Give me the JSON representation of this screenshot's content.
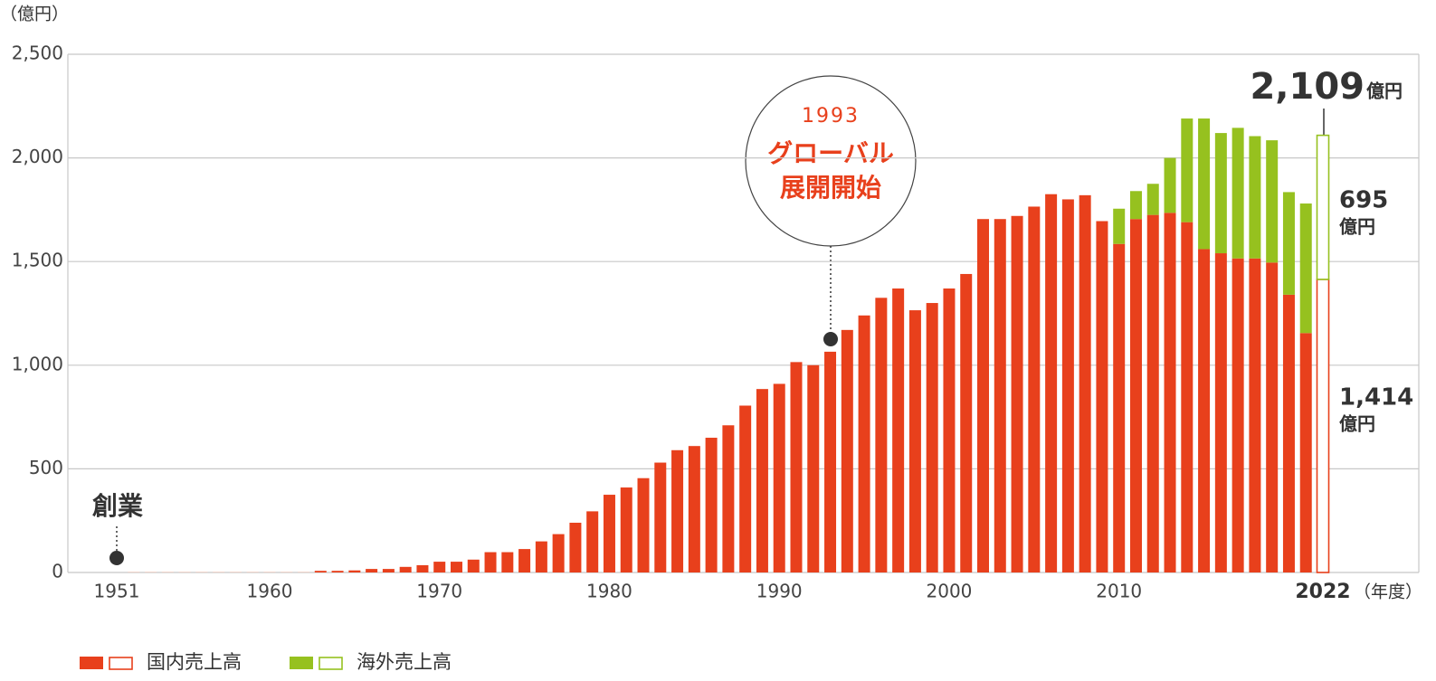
{
  "chart_data": {
    "type": "bar",
    "stacked": true,
    "y_unit": "（億円）",
    "x_unit": "（年度）",
    "categories": [
      "1951",
      null,
      null,
      null,
      null,
      null,
      null,
      null,
      null,
      "1960",
      null,
      null,
      null,
      null,
      null,
      null,
      null,
      null,
      null,
      "1970",
      null,
      null,
      null,
      null,
      null,
      null,
      null,
      null,
      null,
      "1980",
      null,
      null,
      null,
      null,
      null,
      null,
      null,
      null,
      null,
      "1990",
      null,
      null,
      null,
      null,
      null,
      null,
      null,
      null,
      null,
      "2000",
      null,
      null,
      null,
      null,
      null,
      null,
      null,
      null,
      null,
      "2010",
      null,
      null,
      null,
      null,
      null,
      null,
      null,
      null,
      null,
      null,
      null,
      "2022"
    ],
    "series": [
      {
        "name": "国内売上高",
        "color": "#e8401c",
        "values": [
          null,
          3,
          3,
          3,
          3,
          3,
          3,
          3,
          3,
          3,
          3,
          3,
          8,
          8,
          10,
          17,
          17,
          27,
          35,
          52,
          52,
          62,
          98,
          98,
          113,
          150,
          185,
          240,
          295,
          375,
          410,
          455,
          530,
          590,
          610,
          650,
          710,
          805,
          885,
          910,
          1015,
          1000,
          1065,
          1170,
          1240,
          1325,
          1370,
          1265,
          1300,
          1370,
          1440,
          1705,
          1705,
          1720,
          1765,
          1825,
          1800,
          1820,
          1695,
          1585,
          1705,
          1725,
          1735,
          1690,
          1560,
          1540,
          1515,
          1515,
          1495,
          1340,
          1155,
          1414
        ],
        "value_labels": [
          null,
          null,
          null,
          null,
          null,
          null,
          null,
          null,
          null,
          null,
          null,
          null,
          null,
          null,
          null,
          null,
          null,
          null,
          null,
          null,
          null,
          null,
          null,
          null,
          null,
          null,
          null,
          null,
          null,
          null,
          null,
          null,
          null,
          null,
          null,
          null,
          null,
          null,
          null,
          null,
          null,
          null,
          null,
          null,
          null,
          null,
          null,
          null,
          null,
          null,
          null,
          null,
          null,
          null,
          null,
          null,
          null,
          null,
          null,
          null,
          null,
          null,
          null,
          null,
          null,
          null,
          null,
          null,
          null,
          null,
          null,
          "1,414"
        ]
      },
      {
        "name": "海外売上高",
        "color": "#96c11f",
        "values": [
          null,
          null,
          null,
          null,
          null,
          null,
          null,
          null,
          null,
          null,
          null,
          null,
          null,
          null,
          null,
          null,
          null,
          null,
          null,
          null,
          null,
          null,
          null,
          null,
          null,
          null,
          null,
          null,
          null,
          null,
          null,
          null,
          null,
          null,
          null,
          null,
          null,
          null,
          null,
          null,
          null,
          null,
          null,
          null,
          null,
          null,
          null,
          null,
          null,
          null,
          null,
          null,
          null,
          null,
          null,
          null,
          null,
          null,
          null,
          170,
          135,
          150,
          265,
          500,
          630,
          580,
          630,
          590,
          590,
          495,
          625,
          695
        ]
      }
    ],
    "ylim": [
      0,
      2500
    ],
    "yticks": [
      0,
      500,
      {
        "value": 1000,
        "label": "1,000"
      },
      {
        "value": 1500,
        "label": "1,500"
      },
      {
        "value": 2000,
        "label": "2,000"
      },
      {
        "value": 2500,
        "label": "2,500"
      }
    ],
    "grid": true,
    "annotations": {
      "founding": "創業",
      "global_year": "1993",
      "global_line1": "グローバル",
      "global_line2": "展開開始",
      "total_label": "2,109",
      "unit": "億円"
    }
  }
}
